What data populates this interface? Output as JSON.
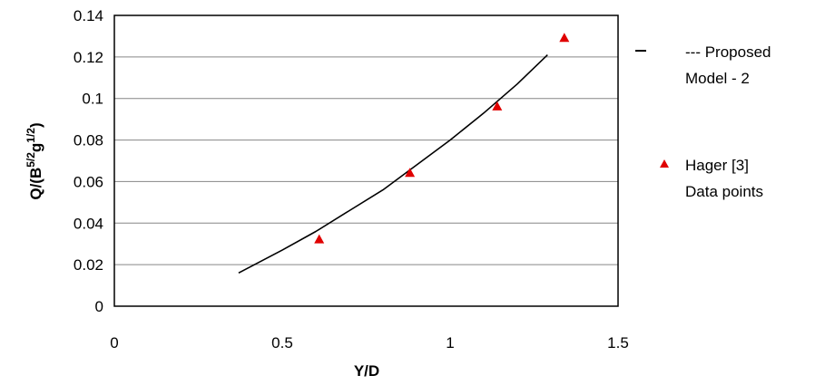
{
  "chart_data": {
    "type": "scatter",
    "xlabel": "Y/D",
    "ylabel_main": "Q/(B",
    "ylabel_sup1": "5/2",
    "ylabel_mid": "g",
    "ylabel_sup2": "1/2",
    "ylabel_end": ")",
    "xlim": [
      0,
      1.5
    ],
    "ylim": [
      0,
      0.14
    ],
    "x_ticks": [
      0,
      0.5,
      1,
      1.5
    ],
    "x_tick_labels": [
      "0",
      "0.5",
      "1",
      "1.5"
    ],
    "y_ticks": [
      0,
      0.02,
      0.04,
      0.06,
      0.08,
      0.1,
      0.12,
      0.14
    ],
    "y_tick_labels": [
      "0",
      "0.02",
      "0.04",
      "0.06",
      "0.08",
      "0.1",
      "0.12",
      "0.14"
    ],
    "grid": "horizontal",
    "legend_position": "right",
    "series": [
      {
        "kind": "line",
        "legend_lines": [
          "--- Proposed",
          "Model - 2"
        ],
        "color": "#000000",
        "x": [
          0.37,
          0.5,
          0.6,
          0.7,
          0.8,
          0.9,
          1.0,
          1.1,
          1.2,
          1.29
        ],
        "y": [
          0.016,
          0.027,
          0.036,
          0.046,
          0.056,
          0.068,
          0.08,
          0.093,
          0.107,
          0.121
        ]
      },
      {
        "kind": "scatter",
        "marker": "triangle",
        "legend_lines": [
          "Hager [3]",
          "Data points"
        ],
        "color": "#e00000",
        "x": [
          0.61,
          0.88,
          1.14,
          1.34
        ],
        "y": [
          0.032,
          0.064,
          0.096,
          0.129
        ]
      }
    ]
  }
}
